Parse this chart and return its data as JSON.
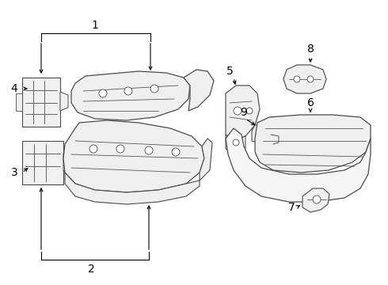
{
  "background_color": "#ffffff",
  "line_color": "#4a4a4a",
  "fill_color": "#f0f0f0",
  "callout_color": "#000000",
  "figsize": [
    4.9,
    3.6
  ],
  "dpi": 100
}
